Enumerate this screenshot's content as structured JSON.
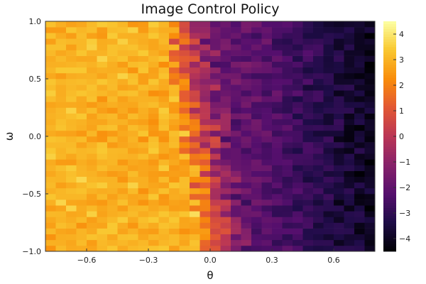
{
  "chart_data": {
    "type": "heatmap",
    "title": "Image Control Policy",
    "xlabel": "θ",
    "ylabel": "ω",
    "xlim": [
      -0.8,
      0.8
    ],
    "ylim": [
      -1.0,
      1.0
    ],
    "x_ticks": [
      -0.6,
      -0.3,
      0.0,
      0.3,
      0.6
    ],
    "x_tick_labels": [
      "−0.6",
      "−0.3",
      "0.0",
      "0.3",
      "0.6"
    ],
    "y_ticks": [
      -1.0,
      -0.5,
      0.0,
      0.5,
      1.0
    ],
    "y_tick_labels": [
      "−1.0",
      "−0.5",
      "0.0",
      "0.5",
      "1.0"
    ],
    "colorbar": {
      "colormap": "inferno",
      "range": [
        -4.5,
        4.5
      ],
      "ticks": [
        -4,
        -3,
        -2,
        -1,
        0,
        1,
        2,
        3,
        4
      ],
      "tick_labels": [
        "−4",
        "−3",
        "−2",
        "−1",
        "0",
        "1",
        "2",
        "3",
        "4"
      ]
    },
    "grid": {
      "nx": 32,
      "ny": 40
    },
    "field_description": "Policy value approx. 3 for theta < -0.25, sharp transition near theta ~ -0.05 to 0.1 (shifting with omega), approx. -3 to -4 for theta > 0.3"
  }
}
